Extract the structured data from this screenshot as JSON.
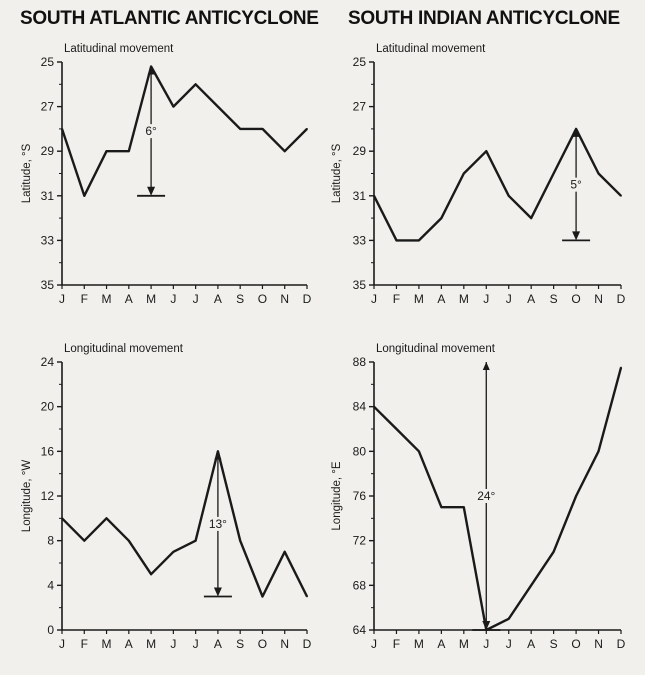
{
  "titles": {
    "left": "SOUTH ATLANTIC ANTICYCLONE",
    "right": "SOUTH INDIAN ANTICYCLONE"
  },
  "chart_data": [
    {
      "id": "atl-lat",
      "type": "line",
      "title": "Latitudinal movement",
      "ylabel": "Latitude, °S",
      "ylim": [
        25,
        35
      ],
      "y_inverted": true,
      "yticks": [
        25,
        27,
        29,
        31,
        33,
        35
      ],
      "categories": [
        "J",
        "F",
        "M",
        "A",
        "M",
        "J",
        "J",
        "A",
        "S",
        "O",
        "N",
        "D"
      ],
      "values": [
        28,
        31,
        29,
        29,
        25.2,
        27,
        26,
        27,
        28,
        28,
        29,
        28
      ],
      "annotation": {
        "label": "6°",
        "month_index": 4,
        "from": 25.2,
        "to": 31
      }
    },
    {
      "id": "ind-lat",
      "type": "line",
      "title": "Latitudinal movement",
      "ylabel": "Latitude, °S",
      "ylim": [
        25,
        35
      ],
      "y_inverted": true,
      "yticks": [
        25,
        27,
        29,
        31,
        33,
        35
      ],
      "categories": [
        "J",
        "F",
        "M",
        "A",
        "M",
        "J",
        "J",
        "A",
        "S",
        "O",
        "N",
        "D"
      ],
      "values": [
        31,
        33,
        33,
        32,
        30,
        29,
        31,
        32,
        30,
        28,
        30,
        31
      ],
      "annotation": {
        "label": "5°",
        "month_index": 9,
        "from": 28,
        "to": 33
      }
    },
    {
      "id": "atl-lon",
      "type": "line",
      "title": "Longitudinal movement",
      "ylabel": "Longitude, °W",
      "ylim": [
        0,
        24
      ],
      "y_inverted": false,
      "yticks": [
        0,
        4,
        8,
        12,
        16,
        20,
        24
      ],
      "categories": [
        "J",
        "F",
        "M",
        "A",
        "M",
        "J",
        "J",
        "A",
        "S",
        "O",
        "N",
        "D"
      ],
      "values": [
        10,
        8,
        10,
        8,
        5,
        7,
        8,
        16,
        8,
        3,
        7,
        3
      ],
      "annotation": {
        "label": "13°",
        "month_index": 7,
        "from": 16,
        "to": 3
      }
    },
    {
      "id": "ind-lon",
      "type": "line",
      "title": "Longitudinal movement",
      "ylabel": "Longitude, °E",
      "ylim": [
        64,
        88
      ],
      "y_inverted": false,
      "yticks": [
        64,
        68,
        72,
        76,
        80,
        84,
        88
      ],
      "categories": [
        "J",
        "F",
        "M",
        "A",
        "M",
        "J",
        "J",
        "A",
        "S",
        "O",
        "N",
        "D"
      ],
      "values": [
        84,
        82,
        80,
        75,
        75,
        64,
        65,
        68,
        71,
        76,
        80,
        87.5
      ],
      "annotation": {
        "label": "24°",
        "month_index": 5,
        "from": 88,
        "to": 64
      }
    }
  ]
}
